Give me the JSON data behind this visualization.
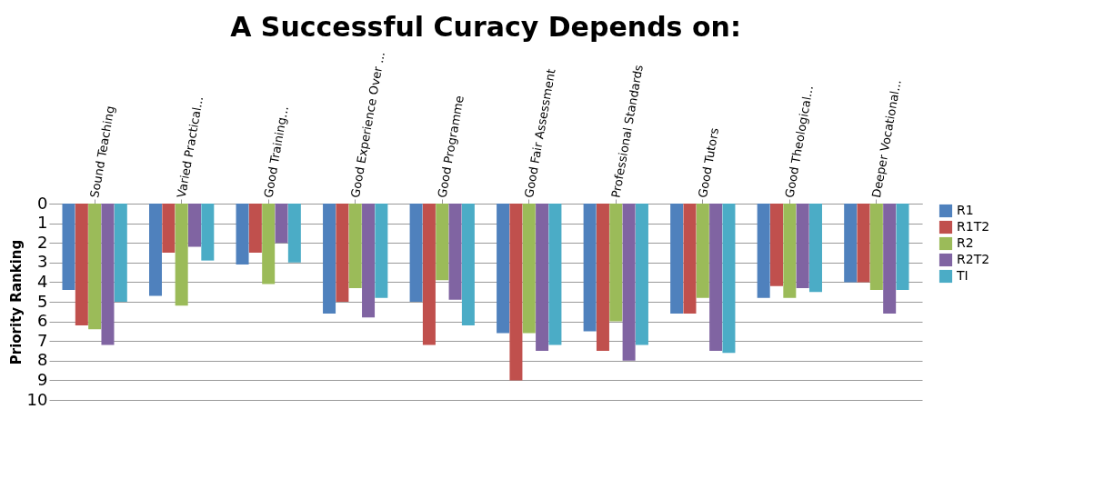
{
  "chart_data": {
    "type": "bar",
    "title": "A Successful Curacy Depends on:",
    "ylabel": "Priority Ranking",
    "categories": [
      "Sound Teaching",
      "Varied Practical...",
      "Good Training...",
      "Good Experience Over ...",
      "Good Programme",
      "Good Fair Assessment",
      "Professional Standards",
      "Good Tutors",
      "Good Theological...",
      "Deeper Vocational..."
    ],
    "series": [
      {
        "name": "R1",
        "color": "#4f81bd",
        "values": [
          4.4,
          4.7,
          3.1,
          5.6,
          5.0,
          6.6,
          6.5,
          5.6,
          4.8,
          4.0
        ]
      },
      {
        "name": "R1T2",
        "color": "#c0504d",
        "values": [
          6.2,
          2.5,
          2.5,
          5.0,
          7.2,
          9.0,
          7.5,
          5.6,
          4.2,
          4.0
        ]
      },
      {
        "name": "R2",
        "color": "#9bbb59",
        "values": [
          6.4,
          5.2,
          4.1,
          4.3,
          3.9,
          6.6,
          6.0,
          4.8,
          4.8,
          4.4
        ]
      },
      {
        "name": "R2T2",
        "color": "#8064a2",
        "values": [
          7.2,
          2.2,
          2.0,
          5.8,
          4.9,
          7.5,
          8.0,
          7.5,
          4.3,
          5.6
        ]
      },
      {
        "name": "TI",
        "color": "#4bacc6",
        "values": [
          5.0,
          2.9,
          3.0,
          4.8,
          6.2,
          7.2,
          7.2,
          7.6,
          4.5,
          4.4
        ]
      }
    ],
    "ylim": [
      10,
      0
    ],
    "yticks": [
      0,
      1,
      2,
      3,
      4,
      5,
      6,
      7,
      8,
      9,
      10
    ],
    "grid": "y",
    "legend": "right"
  }
}
